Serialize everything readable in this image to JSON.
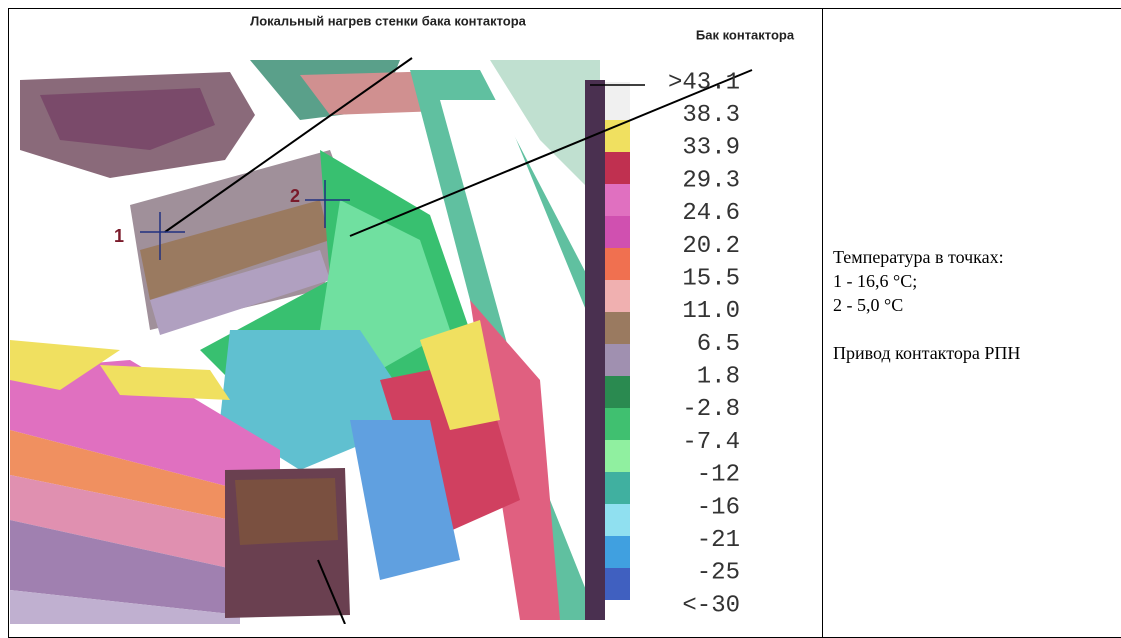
{
  "document": {
    "image": {
      "title": "Локальный нагрев стенки бака контактора",
      "subtitle": "Бак контактора",
      "scale_labels": [
        ">43.1",
        "38.3",
        "33.9",
        "29.3",
        "24.6",
        "20.2",
        "15.5",
        "11.0",
        "6.5",
        "1.8",
        "-2.8",
        "-7.4",
        "-12",
        "-16",
        "-21",
        "-25",
        "<-30"
      ],
      "point_labels": [
        "1",
        "2"
      ]
    },
    "caption": {
      "lines": [
        "Температура в точках:",
        "1 - 16,6 °С;",
        "2 - 5,0 °С"
      ],
      "note": "Привод контактора РПН"
    }
  }
}
